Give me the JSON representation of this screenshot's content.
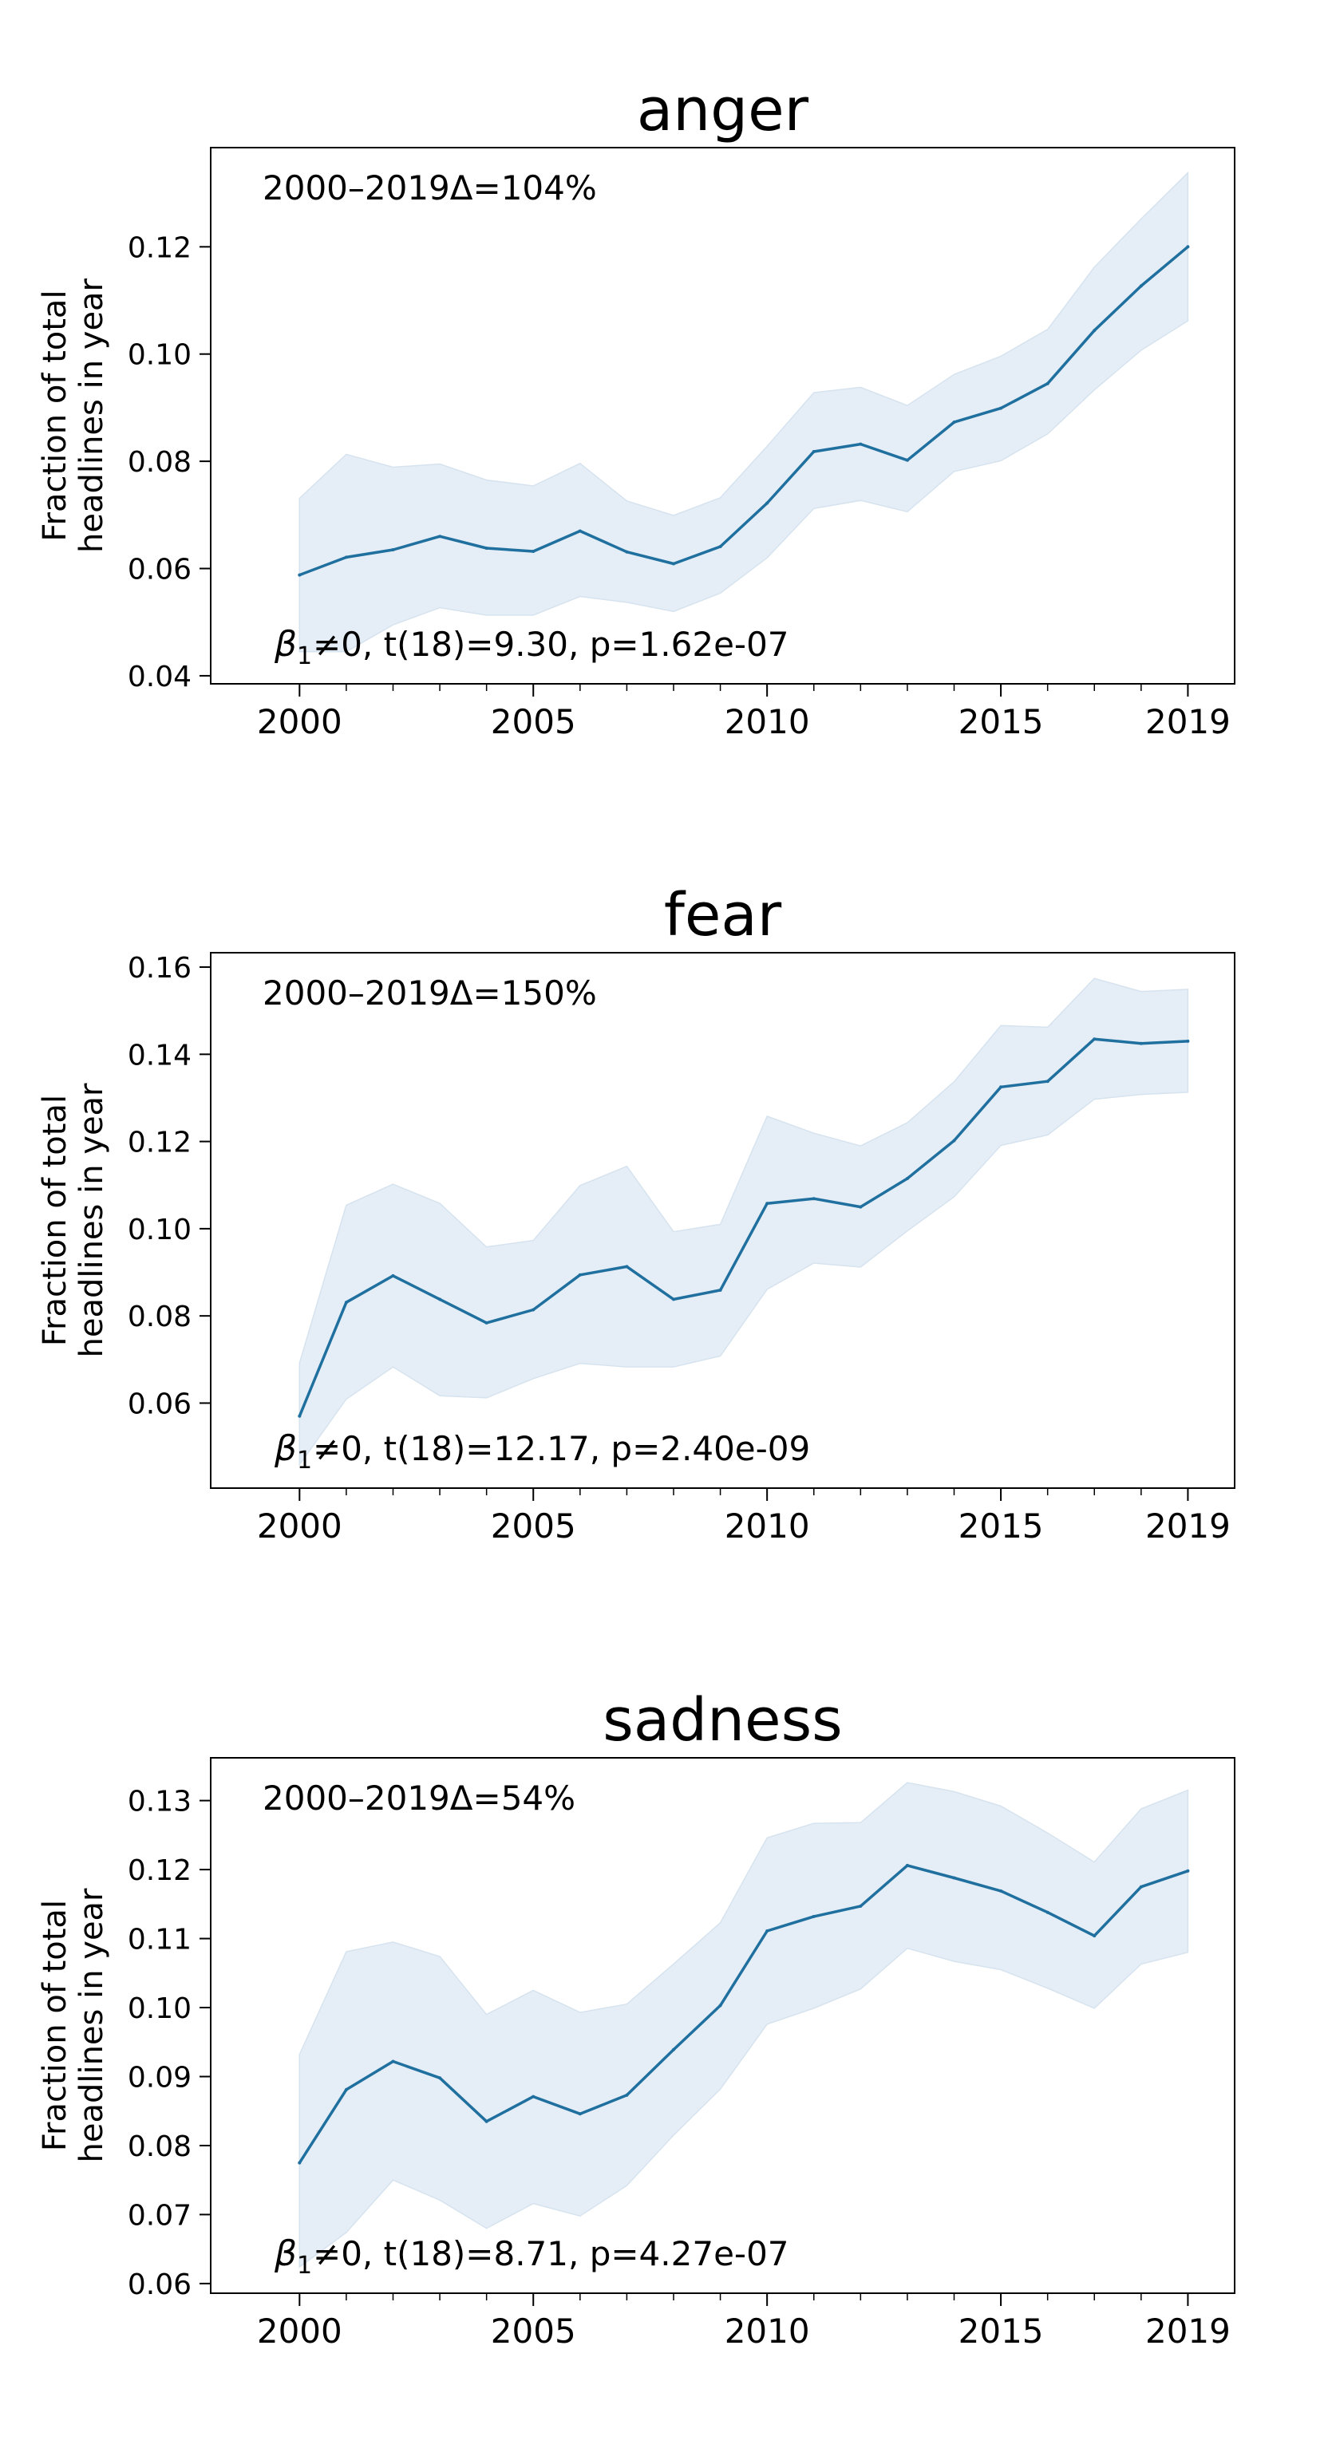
{
  "figure": {
    "ylabel_line1": "Fraction of total",
    "ylabel_line2": "headlines in year"
  },
  "chart_data": [
    {
      "type": "line",
      "title": "anger",
      "xlabel": "",
      "ylabel": "Fraction of total headlines in year",
      "annotation_top": "2000–2019Δ=104%",
      "annotation_bottom_prefix": "≠0, t(18)=9.30, p=1.62e-07",
      "ylim": [
        0.0385,
        0.1385
      ],
      "xlim": [
        1998.1,
        2020.0
      ],
      "yticks": [
        0.04,
        0.06,
        0.08,
        0.1,
        0.12
      ],
      "ytick_labels": [
        "0.04",
        "0.06",
        "0.08",
        "0.10",
        "0.12"
      ],
      "xticks_major": [
        2000,
        2005,
        2010,
        2015,
        2019
      ],
      "xtick_labels": [
        "2000",
        "2005",
        "2010",
        "2015",
        "2019"
      ],
      "grid": false,
      "line_color": "#1f6f9f",
      "band_color": "#e5eef6",
      "x": [
        2000,
        2001,
        2002,
        2003,
        2004,
        2005,
        2006,
        2007,
        2008,
        2009,
        2010,
        2011,
        2012,
        2013,
        2014,
        2015,
        2016,
        2017,
        2018,
        2019
      ],
      "series": [
        {
          "values": [
            0.0588,
            0.0621,
            0.0635,
            0.066,
            0.0638,
            0.0632,
            0.067,
            0.0631,
            0.0609,
            0.0641,
            0.0722,
            0.0818,
            0.0832,
            0.0802,
            0.0873,
            0.0899,
            0.0945,
            0.1044,
            0.1127,
            0.12
          ],
          "lower": [
            0.0445,
            0.0445,
            0.0495,
            0.0527,
            0.0513,
            0.0513,
            0.0548,
            0.0537,
            0.052,
            0.0554,
            0.062,
            0.0712,
            0.0727,
            0.0706,
            0.0781,
            0.0801,
            0.0851,
            0.0933,
            0.1007,
            0.1062
          ],
          "upper": [
            0.0731,
            0.0813,
            0.0789,
            0.0795,
            0.0765,
            0.0754,
            0.0796,
            0.0726,
            0.0699,
            0.0732,
            0.0828,
            0.0928,
            0.0938,
            0.0904,
            0.0962,
            0.0996,
            0.1046,
            0.1162,
            0.1252,
            0.1338
          ]
        }
      ]
    },
    {
      "type": "line",
      "title": "fear",
      "xlabel": "",
      "ylabel": "Fraction of total headlines in year",
      "annotation_top": "2000–2019Δ=150%",
      "annotation_bottom_prefix": "≠0, t(18)=12.17, p=2.40e-09",
      "ylim": [
        0.0405,
        0.1633
      ],
      "xlim": [
        1998.1,
        2020.0
      ],
      "yticks": [
        0.06,
        0.08,
        0.1,
        0.12,
        0.14,
        0.16
      ],
      "ytick_labels": [
        "0.06",
        "0.08",
        "0.10",
        "0.12",
        "0.14",
        "0.16"
      ],
      "xticks_major": [
        2000,
        2005,
        2010,
        2015,
        2019
      ],
      "xtick_labels": [
        "2000",
        "2005",
        "2010",
        "2015",
        "2019"
      ],
      "grid": false,
      "line_color": "#1f6f9f",
      "band_color": "#e5eef6",
      "x": [
        2000,
        2001,
        2002,
        2003,
        2004,
        2005,
        2006,
        2007,
        2008,
        2009,
        2010,
        2011,
        2012,
        2013,
        2014,
        2015,
        2016,
        2017,
        2018,
        2019
      ],
      "series": [
        {
          "values": [
            0.057,
            0.0831,
            0.0892,
            0.0838,
            0.0784,
            0.0814,
            0.0894,
            0.0913,
            0.0838,
            0.0859,
            0.1058,
            0.1069,
            0.105,
            0.1115,
            0.1202,
            0.1325,
            0.1338,
            0.1435,
            0.1425,
            0.143
          ],
          "lower": [
            0.0459,
            0.0609,
            0.0683,
            0.0617,
            0.0612,
            0.0656,
            0.0691,
            0.0683,
            0.0683,
            0.0708,
            0.0861,
            0.0921,
            0.0912,
            0.0995,
            0.1073,
            0.1191,
            0.1215,
            0.1297,
            0.1308,
            0.1313
          ],
          "upper": [
            0.0692,
            0.1054,
            0.1102,
            0.1058,
            0.0958,
            0.0973,
            0.1099,
            0.1143,
            0.0993,
            0.101,
            0.1258,
            0.1219,
            0.119,
            0.1243,
            0.1337,
            0.1466,
            0.1462,
            0.1574,
            0.1544,
            0.1549
          ]
        }
      ]
    },
    {
      "type": "line",
      "title": "sadness",
      "xlabel": "",
      "ylabel": "Fraction of total headlines in year",
      "annotation_top": "2000–2019Δ=54%",
      "annotation_bottom_prefix": "≠0, t(18)=8.71, p=4.27e-07",
      "ylim": [
        0.0586,
        0.1362
      ],
      "xlim": [
        1998.1,
        2020.0
      ],
      "yticks": [
        0.06,
        0.07,
        0.08,
        0.09,
        0.1,
        0.11,
        0.12,
        0.13
      ],
      "ytick_labels": [
        "0.06",
        "0.07",
        "0.08",
        "0.09",
        "0.10",
        "0.11",
        "0.12",
        "0.13"
      ],
      "xticks_major": [
        2000,
        2005,
        2010,
        2015,
        2019
      ],
      "xtick_labels": [
        "2000",
        "2005",
        "2010",
        "2015",
        "2019"
      ],
      "grid": false,
      "line_color": "#1f6f9f",
      "band_color": "#e5eef6",
      "x": [
        2000,
        2001,
        2002,
        2003,
        2004,
        2005,
        2006,
        2007,
        2008,
        2009,
        2010,
        2011,
        2012,
        2013,
        2014,
        2015,
        2016,
        2017,
        2018,
        2019
      ],
      "series": [
        {
          "values": [
            0.0775,
            0.0881,
            0.0922,
            0.0898,
            0.0835,
            0.0871,
            0.0846,
            0.0873,
            0.0939,
            0.1003,
            0.1111,
            0.1132,
            0.1147,
            0.1206,
            0.1188,
            0.1169,
            0.1138,
            0.1104,
            0.1175,
            0.1198
          ],
          "lower": [
            0.0624,
            0.0674,
            0.075,
            0.0721,
            0.068,
            0.0716,
            0.0698,
            0.0742,
            0.0815,
            0.0882,
            0.0976,
            0.0999,
            0.1027,
            0.1086,
            0.1067,
            0.1055,
            0.1028,
            0.0999,
            0.1063,
            0.108
          ],
          "upper": [
            0.0932,
            0.1081,
            0.1095,
            0.1074,
            0.099,
            0.1025,
            0.0993,
            0.1005,
            0.1063,
            0.1123,
            0.1246,
            0.1267,
            0.1268,
            0.1326,
            0.1313,
            0.1292,
            0.1253,
            0.1211,
            0.1288,
            0.1315
          ]
        }
      ]
    }
  ]
}
